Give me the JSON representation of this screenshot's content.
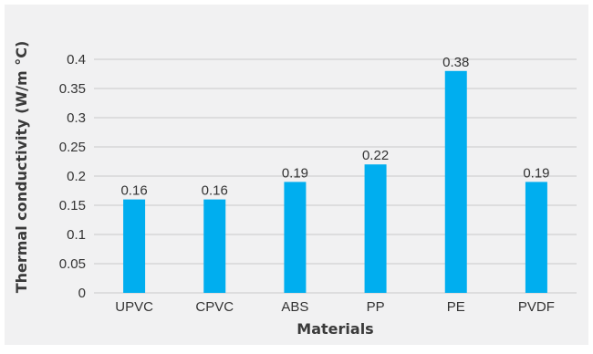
{
  "chart_data": {
    "type": "bar",
    "title": "",
    "xlabel": "Materials",
    "ylabel": "Thermal conductivity (W/m °C)",
    "categories": [
      "UPVC",
      "CPVC",
      "ABS",
      "PP",
      "PE",
      "PVDF"
    ],
    "values": [
      0.16,
      0.16,
      0.19,
      0.22,
      0.38,
      0.19
    ],
    "data_labels": [
      "0.16",
      "0.16",
      "0.19",
      "0.22",
      "0.38",
      "0.19"
    ],
    "yticks": [
      0,
      0.05,
      0.1,
      0.15,
      0.2,
      0.25,
      0.3,
      0.35,
      0.4
    ],
    "ytick_labels": [
      "0",
      "0.05",
      "0.1",
      "0.15",
      "0.2",
      "0.25",
      "0.3",
      "0.35",
      "0.4"
    ],
    "ylim": [
      0,
      0.4
    ],
    "grid": true,
    "legend": "none",
    "colors": {
      "bar": "#00aeef",
      "grid": "#c9c9c9",
      "background": "#f1f1f2",
      "text": "#333333"
    }
  }
}
